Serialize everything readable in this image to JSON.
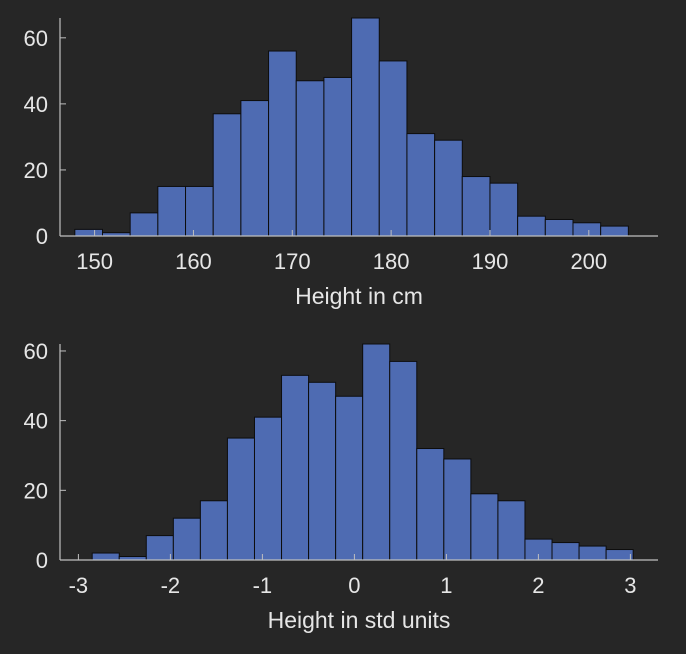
{
  "theme": {
    "background": "#262626",
    "bar_fill": "#4e6bb2",
    "bar_edge": "#0d0d0d",
    "axis_color": "#bfbfbf",
    "text_color": "#e6e6e6"
  },
  "chart_data": [
    {
      "type": "bar",
      "histogram": true,
      "xlabel": "Height in cm",
      "ylabel": "",
      "xlim": [
        146.5,
        207
      ],
      "ylim": [
        0,
        66
      ],
      "xticks": [
        150,
        160,
        170,
        180,
        190,
        200
      ],
      "yticks": [
        0,
        20,
        40,
        60
      ],
      "bin_start": 148,
      "bin_width": 2.8,
      "values": [
        2,
        1,
        7,
        15,
        15,
        37,
        41,
        56,
        47,
        48,
        66,
        53,
        31,
        29,
        18,
        16,
        6,
        5,
        4,
        3
      ],
      "grid": false
    },
    {
      "type": "bar",
      "histogram": true,
      "xlabel": "Height in std units",
      "ylabel": "",
      "xlim": [
        -3.2,
        3.3
      ],
      "ylim": [
        0,
        62
      ],
      "xticks": [
        -3,
        -2,
        -1,
        0,
        1,
        2,
        3
      ],
      "yticks": [
        0,
        20,
        40,
        60
      ],
      "bin_start": -2.85,
      "bin_width": 0.294,
      "values": [
        2,
        1,
        7,
        12,
        17,
        35,
        41,
        53,
        51,
        47,
        62,
        57,
        32,
        29,
        19,
        17,
        6,
        5,
        4,
        3
      ],
      "grid": false
    }
  ]
}
